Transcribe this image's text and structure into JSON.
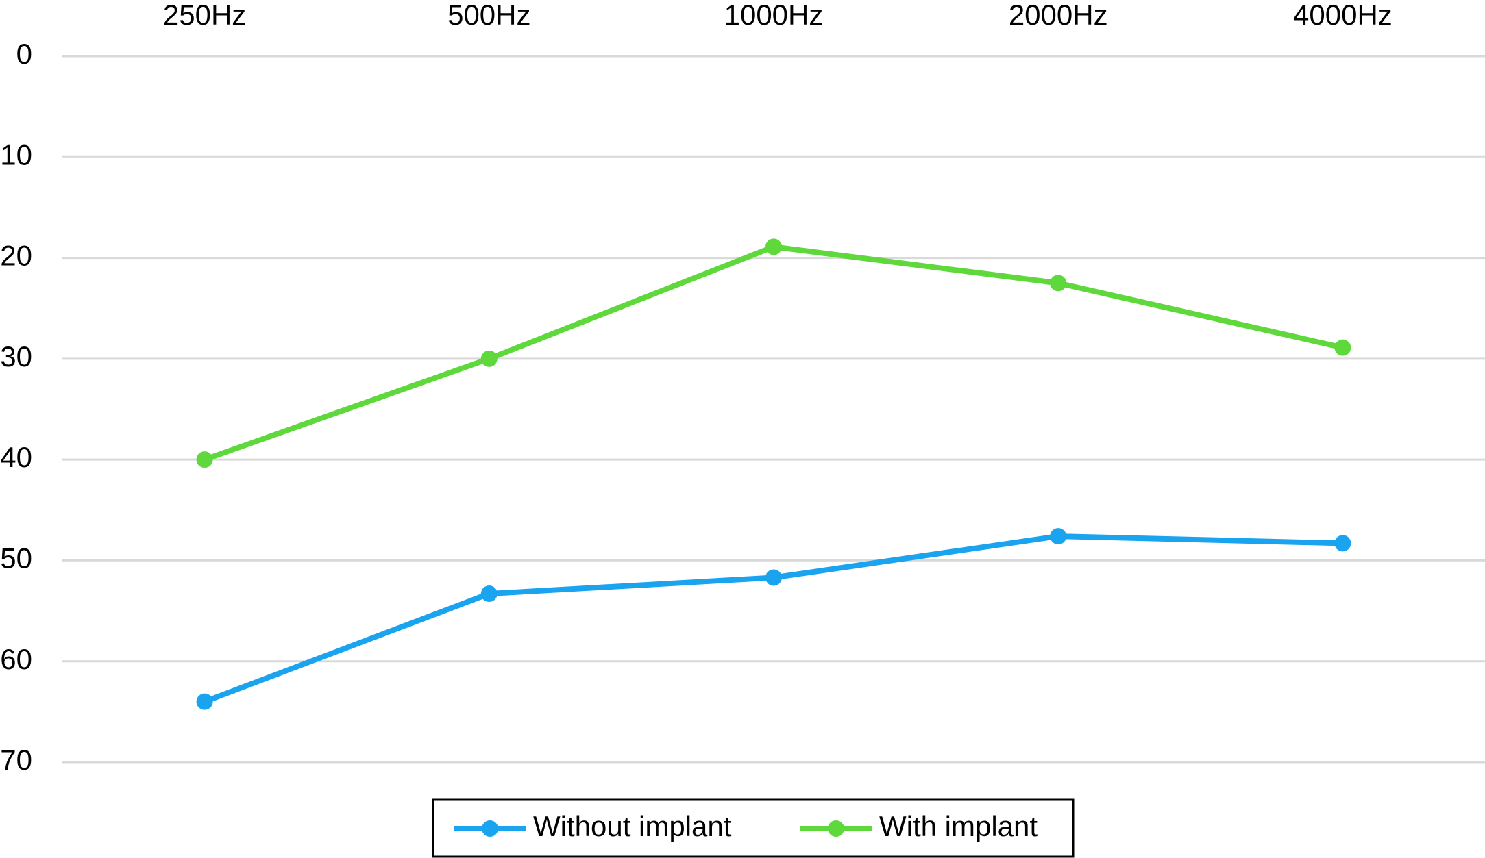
{
  "chart_data": {
    "type": "line",
    "categories": [
      "250Hz",
      "500Hz",
      "1000Hz",
      "2000Hz",
      "4000Hz"
    ],
    "series": [
      {
        "name": "Without implant",
        "color": "#1aa3ef",
        "values": [
          64,
          53.3,
          51.7,
          47.6,
          48.3
        ]
      },
      {
        "name": "With implant",
        "color": "#5fd83c",
        "values": [
          40,
          30,
          18.9,
          22.5,
          28.9
        ]
      }
    ],
    "ylim": [
      0,
      70
    ],
    "y_reversed": true,
    "yticks": [
      0,
      10,
      20,
      30,
      40,
      50,
      60,
      70
    ],
    "grid": true,
    "x_axis_position": "top",
    "legend": "bottom"
  }
}
